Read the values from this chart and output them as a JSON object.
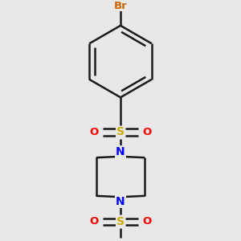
{
  "bg_color": "#e8e8e8",
  "bond_color": "#1a1a1a",
  "N_color": "#0000ff",
  "S_color": "#ccaa00",
  "O_color": "#ff0000",
  "Br_color": "#cc6600",
  "bond_width": 1.8,
  "figsize": [
    3.0,
    3.0
  ],
  "dpi": 100,
  "xlim": [
    0,
    1
  ],
  "ylim": [
    0,
    1
  ]
}
